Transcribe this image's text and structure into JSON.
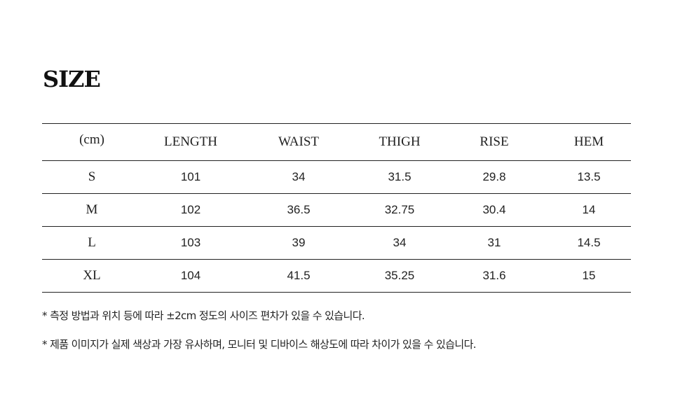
{
  "title": "SIZE",
  "table": {
    "headers": [
      "(cm)",
      "LENGTH",
      "WAIST",
      "THIGH",
      "RISE",
      "HEM"
    ],
    "rows": [
      [
        "S",
        "101",
        "34",
        "31.5",
        "29.8",
        "13.5"
      ],
      [
        "M",
        "102",
        "36.5",
        "32.75",
        "30.4",
        "14"
      ],
      [
        "L",
        "103",
        "39",
        "34",
        "31",
        "14.5"
      ],
      [
        "XL",
        "104",
        "41.5",
        "35.25",
        "31.6",
        "15"
      ]
    ]
  },
  "notes": [
    "* 측정 방법과 위치 등에 따라 ±2cm 정도의 사이즈 편차가 있을 수 있습니다.",
    "* 제품 이미지가 실제 색상과 가장 유사하며, 모니터 및 디바이스 해상도에 따라 차이가 있을 수 있습니다."
  ]
}
